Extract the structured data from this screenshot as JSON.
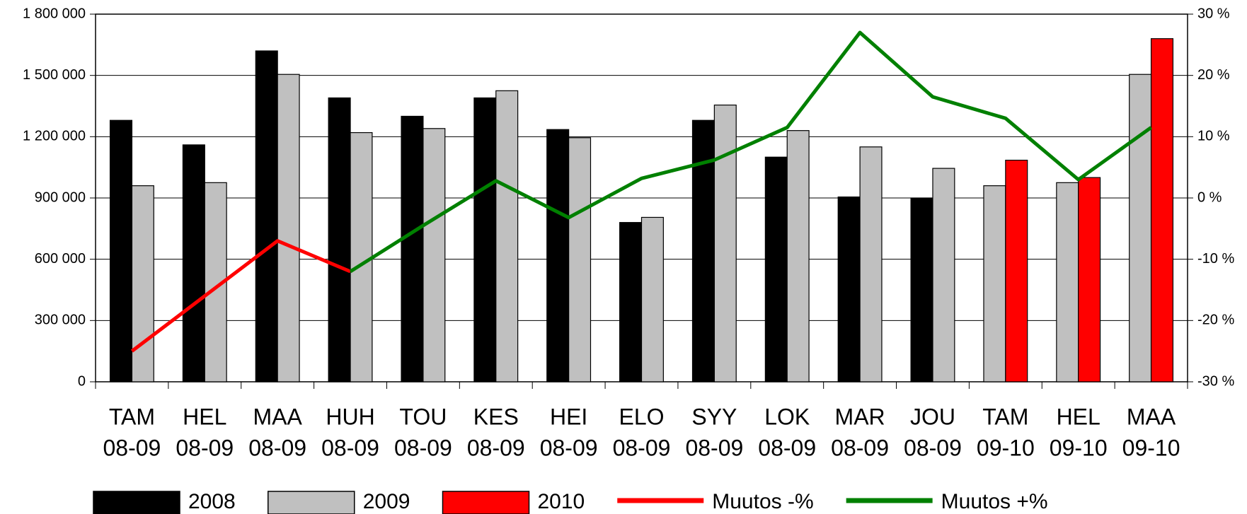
{
  "chart_data": {
    "type": "bar",
    "categories": [
      [
        "TAM",
        "08-09"
      ],
      [
        "HEL",
        "08-09"
      ],
      [
        "MAA",
        "08-09"
      ],
      [
        "HUH",
        "08-09"
      ],
      [
        "TOU",
        "08-09"
      ],
      [
        "KES",
        "08-09"
      ],
      [
        "HEI",
        "08-09"
      ],
      [
        "ELO",
        "08-09"
      ],
      [
        "SYY",
        "08-09"
      ],
      [
        "LOK",
        "08-09"
      ],
      [
        "MAR",
        "08-09"
      ],
      [
        "JOU",
        "08-09"
      ],
      [
        "TAM",
        "09-10"
      ],
      [
        "HEL",
        "09-10"
      ],
      [
        "MAA",
        "09-10"
      ]
    ],
    "series": [
      {
        "name": "2008",
        "color": "#000000",
        "values": [
          1280000,
          1160000,
          1620000,
          1390000,
          1300000,
          1390000,
          1235000,
          780000,
          1280000,
          1100000,
          905000,
          900000,
          null,
          null,
          null
        ]
      },
      {
        "name": "2009",
        "color": "#c0c0c0",
        "values": [
          960000,
          975000,
          1505000,
          1220000,
          1240000,
          1425000,
          1195000,
          805000,
          1355000,
          1230000,
          1150000,
          1045000,
          960000,
          975000,
          1505000
        ]
      },
      {
        "name": "2010",
        "color": "#ff0000",
        "values": [
          null,
          null,
          null,
          null,
          null,
          null,
          null,
          null,
          null,
          null,
          null,
          null,
          1085000,
          1000000,
          1680000
        ]
      },
      {
        "name": "Muutos -%",
        "type": "line",
        "axis": "y2",
        "color": "#ff0000",
        "values": [
          -25,
          -16,
          -7,
          -12,
          null,
          null,
          null,
          null,
          null,
          null,
          null,
          null,
          null,
          null,
          null
        ]
      },
      {
        "name": "Muutos +%",
        "type": "line",
        "axis": "y2",
        "color": "#008000",
        "values": [
          null,
          null,
          null,
          -12,
          -4.5,
          2.8,
          -3.2,
          3.2,
          6.2,
          11.5,
          27,
          16.5,
          13,
          3,
          11.5
        ]
      }
    ],
    "ylim": [
      0,
      1800000
    ],
    "yticks": [
      0,
      {
        "value": 300000,
        "label": "300 000"
      },
      {
        "value": 600000,
        "label": "600 000"
      },
      {
        "value": 900000,
        "label": "900 000"
      },
      {
        "value": 1200000,
        "label": "1 200 000"
      },
      {
        "value": 1500000,
        "label": "1 500 000"
      },
      {
        "value": 1800000,
        "label": "1 800 000"
      }
    ],
    "y2lim": [
      -30,
      30
    ],
    "y2ticks": [
      {
        "value": -30,
        "label": "-30 %"
      },
      {
        "value": -20,
        "label": "-20 %"
      },
      {
        "value": -10,
        "label": "-10 %"
      },
      {
        "value": 0,
        "label": "0 %"
      },
      {
        "value": 10,
        "label": "10 %"
      },
      {
        "value": 20,
        "label": "20 %"
      },
      {
        "value": 30,
        "label": "30 %"
      }
    ],
    "grid": true,
    "legend": "bottom"
  }
}
